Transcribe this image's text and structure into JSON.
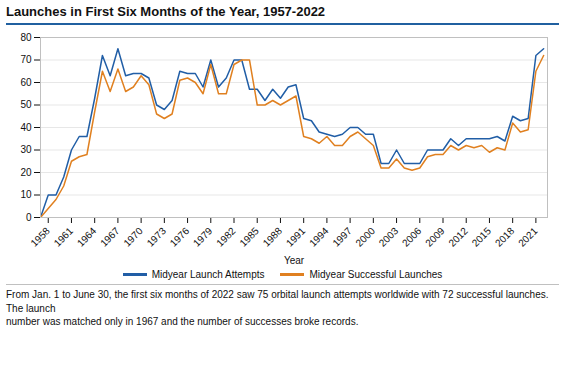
{
  "chart_data": {
    "type": "line",
    "title": "Launches in First Six Months of the Year, 1957-2022",
    "xlabel": "Year",
    "caption": "From Jan. 1 to June 30, the first six months of 2022 saw 75 orbital launch attempts worldwide with 72 successful launches. The launch\nnumber was matched only in 1967 and the number of successes broke records.",
    "x": [
      1957,
      1958,
      1959,
      1960,
      1961,
      1962,
      1963,
      1964,
      1965,
      1966,
      1967,
      1968,
      1969,
      1970,
      1971,
      1972,
      1973,
      1974,
      1975,
      1976,
      1977,
      1978,
      1979,
      1980,
      1981,
      1982,
      1983,
      1984,
      1985,
      1986,
      1987,
      1988,
      1989,
      1990,
      1991,
      1992,
      1993,
      1994,
      1995,
      1996,
      1997,
      1998,
      1999,
      2000,
      2001,
      2002,
      2003,
      2004,
      2005,
      2006,
      2007,
      2008,
      2009,
      2010,
      2011,
      2012,
      2013,
      2014,
      2015,
      2016,
      2017,
      2018,
      2019,
      2020,
      2021,
      2022
    ],
    "series": [
      {
        "name": "Midyear Launch Attempts",
        "color": "#215ea6",
        "values": [
          0,
          10,
          10,
          18,
          30,
          36,
          36,
          53,
          72,
          63,
          75,
          63,
          64,
          64,
          62,
          50,
          48,
          52,
          65,
          64,
          64,
          58,
          70,
          58,
          62,
          70,
          70,
          57,
          57,
          52,
          57,
          53,
          58,
          59,
          44,
          43,
          38,
          37,
          36,
          37,
          40,
          40,
          37,
          37,
          24,
          24,
          30,
          24,
          24,
          24,
          30,
          30,
          30,
          35,
          32,
          35,
          35,
          35,
          35,
          36,
          34,
          45,
          43,
          44,
          72,
          75
        ]
      },
      {
        "name": "Midyear Successful Launches",
        "color": "#e08020",
        "values": [
          0,
          4,
          8,
          14,
          25,
          27,
          28,
          47,
          65,
          56,
          66,
          56,
          58,
          63,
          59,
          46,
          44,
          46,
          61,
          62,
          60,
          55,
          68,
          55,
          55,
          68,
          70,
          70,
          50,
          50,
          52,
          50,
          52,
          54,
          36,
          35,
          33,
          36,
          32,
          32,
          36,
          38,
          35,
          32,
          22,
          22,
          26,
          22,
          21,
          22,
          27,
          28,
          28,
          32,
          30,
          32,
          31,
          32,
          29,
          31,
          30,
          42,
          38,
          39,
          65,
          72
        ]
      }
    ],
    "xlim": [
      1957,
      2022.5
    ],
    "xticks": [
      1958,
      1961,
      1964,
      1967,
      1970,
      1973,
      1976,
      1979,
      1982,
      1985,
      1988,
      1991,
      1994,
      1997,
      2000,
      2003,
      2006,
      2009,
      2012,
      2015,
      2018,
      2021
    ],
    "ylim": [
      0,
      80
    ],
    "yticks": [
      0,
      10,
      20,
      30,
      40,
      50,
      60,
      70,
      80
    ],
    "grid": true,
    "legend": "bottom"
  }
}
